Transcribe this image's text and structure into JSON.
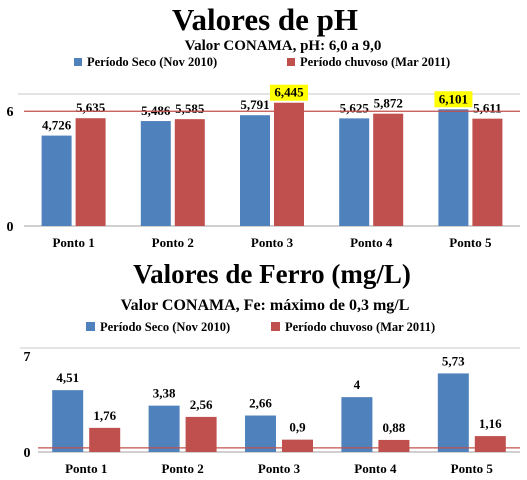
{
  "series_colors": [
    "#4f81bd",
    "#c0504d"
  ],
  "chart_data": [
    {
      "type": "bar",
      "title": "Valores de pH",
      "subtitle": "Valor CONAMA, pH: 6,0 a 9,0",
      "categories": [
        "Ponto 1",
        "Ponto 2",
        "Ponto 3",
        "Ponto 4",
        "Ponto 5"
      ],
      "series": [
        {
          "name": "Período  Seco  (Nov 2010)",
          "values": [
            4.726,
            5.486,
            5.791,
            5.625,
            6.101
          ],
          "labels": [
            "4,726",
            "5,486",
            "5,791",
            "5,625",
            "6,101"
          ]
        },
        {
          "name": "Período chuvoso (Mar 2011)",
          "values": [
            5.635,
            5.585,
            6.445,
            5.872,
            5.611
          ],
          "labels": [
            "5,635",
            "5,585",
            "6,445",
            "5,872",
            "5,611"
          ]
        }
      ],
      "highlighted_labels": [
        {
          "series": 1,
          "index": 2
        },
        {
          "series": 0,
          "index": 4
        }
      ],
      "ylim": [
        0,
        6.9
      ],
      "yticks": [
        0,
        6
      ],
      "reference_line": 6,
      "legend_position": "top"
    },
    {
      "type": "bar",
      "title": "Valores de Ferro (mg/L)",
      "subtitle": "Valor CONAMA, Fe: máximo de 0,3 mg/L",
      "categories": [
        "Ponto 1",
        "Ponto 2",
        "Ponto 3",
        "Ponto 4",
        "Ponto 5"
      ],
      "series": [
        {
          "name": "Período  Seco  (Nov 2010)",
          "values": [
            4.51,
            3.38,
            2.66,
            4,
            5.73
          ],
          "labels": [
            "4,51",
            "3,38",
            "2,66",
            "4",
            "5,73"
          ]
        },
        {
          "name": "Período chuvoso (Mar 2011)",
          "values": [
            1.76,
            2.56,
            0.9,
            0.88,
            1.16
          ],
          "labels": [
            "1,76",
            "2,56",
            "0,9",
            "0,88",
            "1,16"
          ]
        }
      ],
      "ylim": [
        0,
        7
      ],
      "yticks": [
        0,
        7
      ],
      "reference_line": 0.3,
      "legend_position": "top"
    }
  ]
}
